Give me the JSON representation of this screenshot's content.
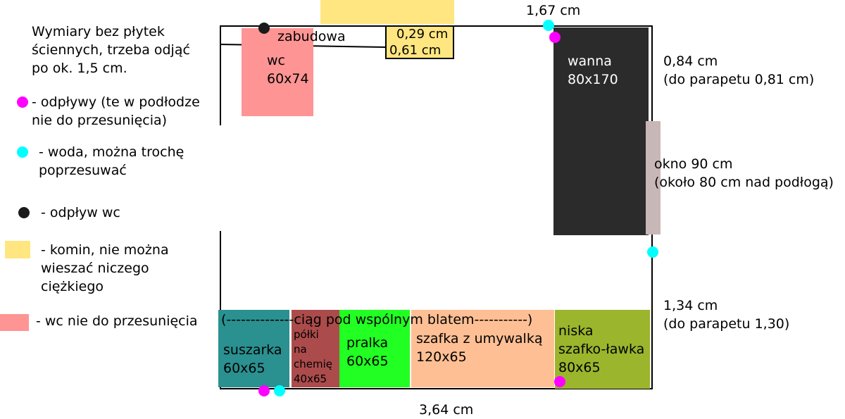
{
  "legend": {
    "note": "Wymiary bez płytek\nściennych, trzeba odjąć\npo ok. 1,5 cm.",
    "drains": "- odpływy (te w podłodze\nnie do przesunięcia)",
    "water": "- woda, można trochę\npoprzesuwać",
    "wc_drain": "- odpływ wc",
    "chimney": "- komin, nie można\nwieszać niczego\nciężkiego",
    "wc_fixed": "- wc nie do przesunięcia"
  },
  "colors": {
    "drain": "#ff00ff",
    "water": "#00ffff",
    "wc_drain": "#1a1a1a",
    "chimney": "#ffe680",
    "wc": "#ff9494",
    "bathtub": "#2b2b2b",
    "window": "#c8b7b7",
    "dryer": "#2a9090",
    "shelves": "#ab4b4b",
    "washer": "#22ff22",
    "sink_cabinet": "#ffbf94",
    "bench": "#9bb52d"
  },
  "plan": {
    "zabudowa": "zabudowa",
    "chimney_dim1": "0,29 cm",
    "chimney_dim2": "0,61 cm",
    "top_dim": "1,67 cm",
    "right_dim_top": "0,84 cm\n(do parapetu 0,81 cm)",
    "window_label": "okno 90 cm\n(około 80 cm nad podłogą)",
    "right_dim_bottom": "1,34 cm\n(do parapetu 1,30)",
    "bottom_dim": "3,64 cm",
    "counter_note": "(--------------ciąg pod wspólnym blatem-----------)",
    "wc": "wc\n60x74",
    "bathtub": "wanna\n80x170",
    "dryer": "suszarka\n60x65",
    "shelves": "półki\nna\nchemię\n40x65",
    "washer": "pralka\n60x65",
    "sink_cabinet": "szafka z umywalką\n120x65",
    "bench": "niska\nszafko-ławka\n80x65"
  }
}
